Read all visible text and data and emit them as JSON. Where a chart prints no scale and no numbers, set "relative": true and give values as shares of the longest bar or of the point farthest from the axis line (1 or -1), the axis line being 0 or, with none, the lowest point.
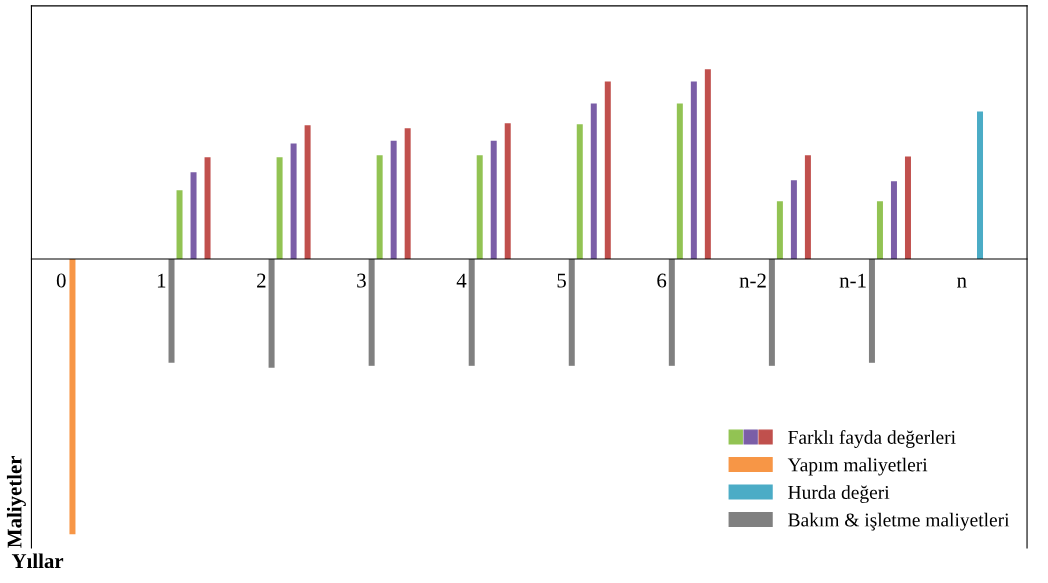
{
  "chart_data": {
    "type": "bar",
    "relative": true,
    "xlabel": "Yıllar",
    "ylabel": "Maliyetler",
    "categories": [
      "0",
      "1",
      "2",
      "3",
      "4",
      "5",
      "6",
      "n-2",
      "n-1",
      "n"
    ],
    "series": [
      {
        "color": "#92c353",
        "values": [
          null,
          0.25,
          0.37,
          0.377,
          0.377,
          0.49,
          0.565,
          0.21,
          0.21,
          null
        ]
      },
      {
        "color": "#7b5ea7",
        "values": [
          null,
          0.315,
          0.42,
          0.43,
          0.43,
          0.565,
          0.645,
          0.286,
          0.283,
          null
        ]
      },
      {
        "name": "Farklı fayda değerleri",
        "color": "#c0504d",
        "values": [
          null,
          0.37,
          0.486,
          0.475,
          0.493,
          0.645,
          0.69,
          0.377,
          0.373,
          null
        ]
      },
      {
        "name": "Yapım maliyetleri",
        "color": "#f79646",
        "values": [
          -1,
          null,
          null,
          null,
          null,
          null,
          null,
          null,
          null,
          null
        ]
      },
      {
        "name": "Hurda değeri",
        "color": "#4bacc6",
        "values": [
          null,
          null,
          null,
          null,
          null,
          null,
          null,
          null,
          null,
          0.536
        ]
      },
      {
        "name": "Bakım & işletme maliyetleri",
        "color": "#808080",
        "values": [
          null,
          -0.377,
          -0.395,
          -0.388,
          -0.388,
          -0.388,
          -0.388,
          -0.388,
          -0.377,
          null
        ]
      }
    ],
    "legend": "bottom right",
    "grid": false,
    "tick_labels": "x"
  }
}
